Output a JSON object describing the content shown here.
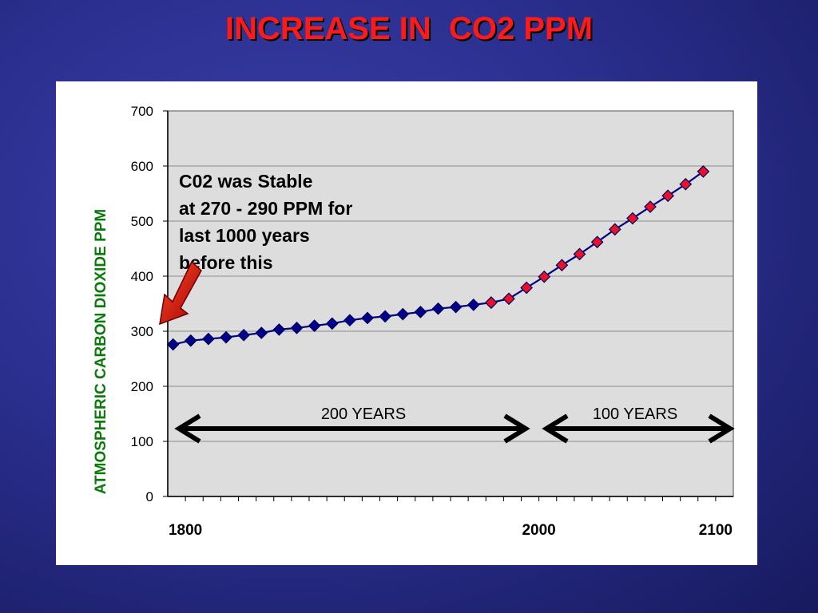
{
  "slide": {
    "title": "INCREASE IN  CO2 PPM",
    "title_color": "#ff1a1a",
    "background_color": "#2b2f8f"
  },
  "chart_data": {
    "type": "line",
    "title": "",
    "xlabel": "",
    "ylabel": "ATMOSPHERIC CARBON DIOXIDE PPM",
    "ylim": [
      0,
      700
    ],
    "yticks": [
      0,
      100,
      200,
      300,
      400,
      500,
      600,
      700
    ],
    "xlim": [
      1790,
      2110
    ],
    "xticks": [
      1800,
      2000,
      2100
    ],
    "xtick_labels": [
      "1800",
      "2000",
      "2100"
    ],
    "grid": true,
    "legend": "none",
    "plot_background": "#dddddd",
    "line_color": "#000080",
    "series": [
      {
        "marker": "diamond",
        "color": "#00008b",
        "x": [
          1793,
          1803,
          1813,
          1823,
          1833,
          1843,
          1853,
          1863,
          1873,
          1883,
          1893,
          1903,
          1913,
          1923,
          1933,
          1943,
          1953,
          1963,
          1973
        ],
        "values": [
          276,
          283,
          286,
          289,
          293,
          297,
          303,
          306,
          310,
          314,
          320,
          324,
          327,
          331,
          335,
          341,
          344,
          348,
          352
        ]
      },
      {
        "marker": "diamond",
        "color": "#e8102a",
        "x": [
          1973,
          1983,
          1993,
          2003,
          2013,
          2023,
          2033,
          2043,
          2053,
          2063,
          2073,
          2083,
          2093
        ],
        "values": [
          352,
          359,
          379,
          399,
          420,
          440,
          462,
          485,
          505,
          526,
          546,
          567,
          590
        ]
      }
    ],
    "annotations": [
      {
        "lines": [
          "C02 was Stable",
          "at 270 - 290 PPM for",
          "last 1000 years",
          "before this"
        ]
      }
    ],
    "spans": [
      {
        "label": "200 YEARS"
      },
      {
        "label": "100 YEARS"
      }
    ]
  }
}
